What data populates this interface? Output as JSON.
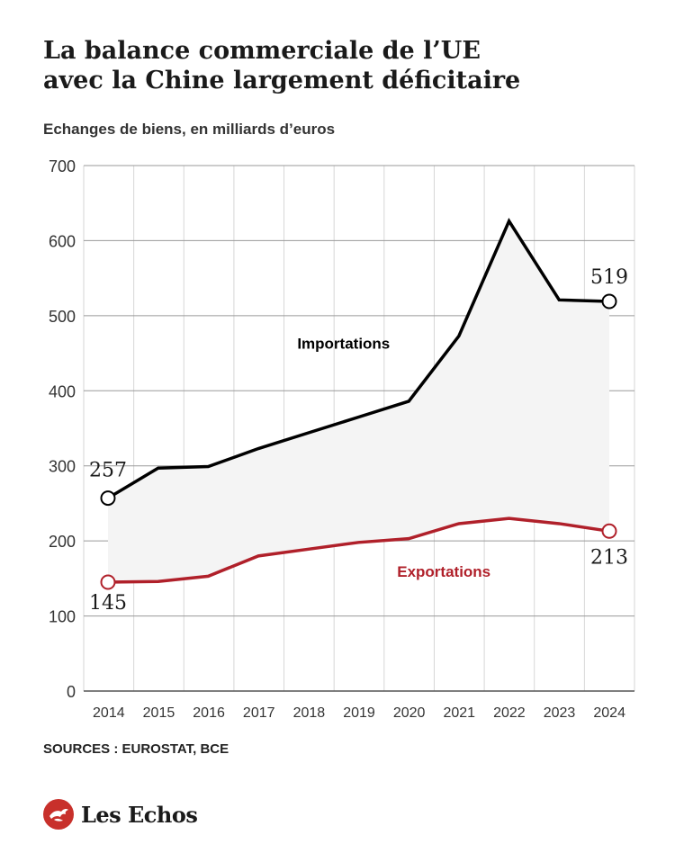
{
  "title": {
    "line1": "La balance commerciale de l’UE",
    "line2": "avec la Chine largement déficitaire"
  },
  "subtitle": "Echanges de biens, en milliards d’euros",
  "source": "SOURCES : EUROSTAT, BCE",
  "brand": {
    "name": "Les Echos",
    "icon": "les-echos-logo",
    "color": "#c8302b"
  },
  "chart_data": {
    "type": "line",
    "x": [
      "2014",
      "2015",
      "2016",
      "2017",
      "2018",
      "2019",
      "2020",
      "2021",
      "2022",
      "2023",
      "2024"
    ],
    "ylim": [
      0,
      700
    ],
    "yticks": [
      0,
      100,
      200,
      300,
      400,
      500,
      600,
      700
    ],
    "grid": true,
    "series": [
      {
        "name": "Importations",
        "color": "#000000",
        "values": [
          257,
          297,
          299,
          323,
          344,
          365,
          386,
          473,
          626,
          521,
          519
        ],
        "start_label": "257",
        "end_label": "519"
      },
      {
        "name": "Exportations",
        "color": "#b0202a",
        "values": [
          145,
          146,
          153,
          180,
          189,
          198,
          203,
          223,
          230,
          223,
          213
        ],
        "start_label": "145",
        "end_label": "213"
      }
    ],
    "fill_between": true
  }
}
